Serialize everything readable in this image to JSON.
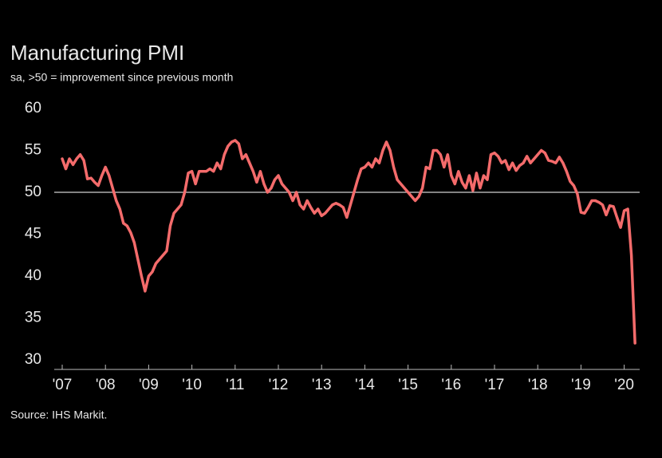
{
  "chart_data": {
    "type": "line",
    "title": "Manufacturing PMI",
    "subtitle": "sa, >50 = improvement since previous month",
    "source": "Source: IHS Markit.",
    "categories": [
      "'07",
      null,
      null,
      null,
      null,
      null,
      null,
      null,
      null,
      null,
      null,
      null,
      "'08",
      null,
      null,
      null,
      null,
      null,
      null,
      null,
      null,
      null,
      null,
      null,
      "'09",
      null,
      null,
      null,
      null,
      null,
      null,
      null,
      null,
      null,
      null,
      null,
      "'10",
      null,
      null,
      null,
      null,
      null,
      null,
      null,
      null,
      null,
      null,
      null,
      "'11",
      null,
      null,
      null,
      null,
      null,
      null,
      null,
      null,
      null,
      null,
      null,
      "'12",
      null,
      null,
      null,
      null,
      null,
      null,
      null,
      null,
      null,
      null,
      null,
      "'13",
      null,
      null,
      null,
      null,
      null,
      null,
      null,
      null,
      null,
      null,
      null,
      "'14",
      null,
      null,
      null,
      null,
      null,
      null,
      null,
      null,
      null,
      null,
      null,
      "'15",
      null,
      null,
      null,
      null,
      null,
      null,
      null,
      null,
      null,
      null,
      null,
      "'16",
      null,
      null,
      null,
      null,
      null,
      null,
      null,
      null,
      null,
      null,
      null,
      "'17",
      null,
      null,
      null,
      null,
      null,
      null,
      null,
      null,
      null,
      null,
      null,
      "'18",
      null,
      null,
      null,
      null,
      null,
      null,
      null,
      null,
      null,
      null,
      null,
      "'19",
      null,
      null,
      null,
      null,
      null,
      null,
      null,
      null,
      null,
      null,
      null,
      "'20",
      null,
      null,
      null
    ],
    "series": [
      {
        "name": "Manufacturing PMI",
        "color": "#f46b6b",
        "values": [
          54,
          52.8,
          54,
          53.3,
          54,
          54.5,
          53.8,
          51.6,
          51.7,
          51.2,
          50.8,
          52,
          53,
          52,
          50.5,
          49,
          48,
          46.3,
          46,
          45.2,
          44,
          42,
          40,
          38.2,
          40,
          40.5,
          41.5,
          42,
          42.5,
          43,
          46,
          47.5,
          48,
          48.5,
          50,
          52.3,
          52.5,
          51,
          52.5,
          52.5,
          52.5,
          52.8,
          52.5,
          53.5,
          52.8,
          54.5,
          55.5,
          56,
          56.2,
          55.8,
          54,
          54.5,
          53.5,
          52.5,
          51.2,
          52.5,
          51,
          50,
          50.5,
          51.5,
          52,
          51,
          50.5,
          50,
          49,
          50,
          48.5,
          48,
          49,
          48.2,
          47.5,
          48,
          47.2,
          47.5,
          48,
          48.5,
          48.7,
          48.5,
          48.2,
          47,
          48.5,
          50,
          51.5,
          52.8,
          53,
          53.5,
          53,
          54,
          53.5,
          55,
          56,
          55,
          53,
          51.5,
          51,
          50.5,
          50,
          49.5,
          49,
          49.5,
          50.5,
          53,
          52.8,
          55,
          55,
          54.5,
          53,
          54.5,
          52,
          51,
          52.5,
          51.2,
          50.5,
          52,
          50.2,
          52.3,
          50.5,
          52,
          51.5,
          54.5,
          54.7,
          54.3,
          53.5,
          53.8,
          52.7,
          53.5,
          52.6,
          53.2,
          53.5,
          54.3,
          53.5,
          54,
          54.5,
          55,
          54.7,
          53.8,
          53.7,
          53.5,
          54.2,
          53.5,
          52.5,
          51.3,
          50.8,
          49.8,
          47.6,
          47.5,
          48.2,
          49,
          49,
          48.8,
          48.5,
          47.3,
          48.4,
          48.3,
          47,
          45.8,
          47.8,
          48,
          42.5,
          32
        ]
      }
    ],
    "ylim": [
      30,
      60
    ],
    "yticks": [
      30,
      35,
      40,
      45,
      50,
      55,
      60
    ],
    "hline": 50,
    "grid": false
  }
}
